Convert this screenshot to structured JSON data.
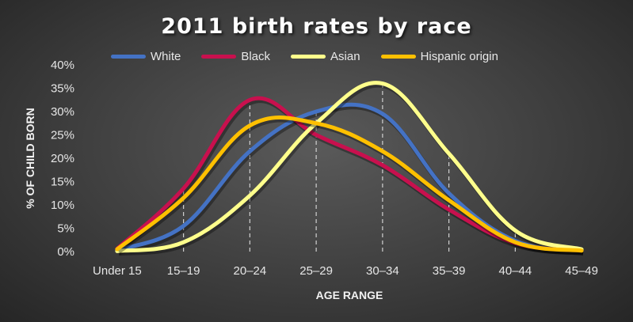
{
  "chart_data": {
    "type": "line",
    "title": "2011 birth rates by race",
    "xlabel": "AGE RANGE",
    "ylabel": "% OF CHILD BORN",
    "categories": [
      "Under 15",
      "15–19",
      "20–24",
      "25–29",
      "30–34",
      "35–39",
      "40–44",
      "45–49"
    ],
    "yticks": [
      "0%",
      "5%",
      "10%",
      "15%",
      "20%",
      "25%",
      "30%",
      "35%",
      "40%"
    ],
    "ylim": [
      0,
      40
    ],
    "legend_position": "top",
    "grid": "vertical dashed",
    "series": [
      {
        "name": "White",
        "color": "#4472c4",
        "values": [
          0.3,
          5.5,
          21.5,
          30.0,
          29.5,
          12.5,
          2.3,
          0.2
        ]
      },
      {
        "name": "Black",
        "color": "#c8104e",
        "values": [
          0.6,
          13.5,
          32.5,
          25.0,
          18.5,
          9.0,
          1.8,
          0.2
        ]
      },
      {
        "name": "Asian",
        "color": "#ffff8c",
        "values": [
          0.1,
          2.0,
          12.0,
          27.5,
          36.0,
          21.0,
          4.5,
          0.5
        ]
      },
      {
        "name": "Hispanic origin",
        "color": "#ffc000",
        "values": [
          0.5,
          11.5,
          27.0,
          27.5,
          21.5,
          11.0,
          2.0,
          0.2
        ]
      }
    ]
  }
}
